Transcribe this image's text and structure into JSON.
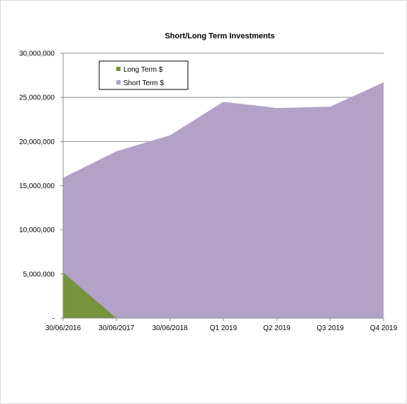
{
  "chart_data": {
    "type": "area",
    "title": "Short/Long Term Investments",
    "xlabel": "",
    "ylabel": "",
    "categories": [
      "30/06/2016",
      "30/06/2017",
      "30/06/2018",
      "Q1 2019",
      "Q2 2019",
      "Q3 2019",
      "Q4 2019"
    ],
    "series": [
      {
        "name": "Long Term $",
        "color": "#77933c",
        "values": [
          5200000,
          0,
          0,
          0,
          0,
          0,
          0
        ]
      },
      {
        "name": "Short Term $",
        "color": "#b3a2c7",
        "values": [
          10700000,
          18900000,
          20700000,
          24500000,
          23800000,
          23950000,
          26700000
        ]
      }
    ],
    "stacked": true,
    "ylim": [
      0,
      30000000
    ],
    "yticks": [
      {
        "value": 0,
        "label": "-"
      },
      {
        "value": 5000000,
        "label": "5,000,000"
      },
      {
        "value": 10000000,
        "label": "10,000,000"
      },
      {
        "value": 15000000,
        "label": "15,000,000"
      },
      {
        "value": 20000000,
        "label": "20,000,000"
      },
      {
        "value": 25000000,
        "label": "25,000,000"
      },
      {
        "value": 30000000,
        "label": "30,000,000"
      }
    ],
    "grid": true,
    "legend": "top-left"
  }
}
